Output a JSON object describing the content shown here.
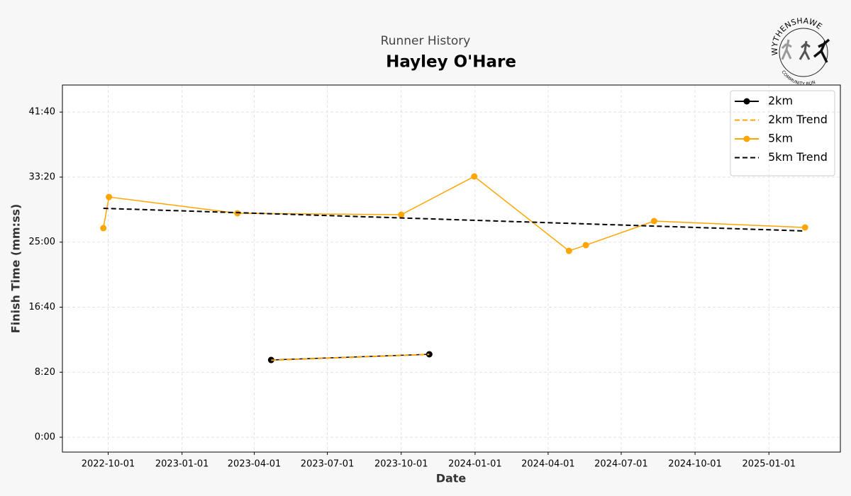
{
  "chart_data": {
    "type": "line",
    "subtitle": "Runner History",
    "title": "Hayley O'Hare",
    "xlabel": "Date",
    "ylabel": "Finish Time (mm:ss)",
    "logo": {
      "top": "WYTHENSHAWE",
      "bottom": "COMMUNITY RUN"
    },
    "xlim": [
      "2022-08-05",
      "2025-03-31"
    ],
    "xticks": [
      "2022-10-01",
      "2023-01-01",
      "2023-04-01",
      "2023-07-01",
      "2023-10-01",
      "2024-01-01",
      "2024-04-01",
      "2024-07-01",
      "2024-10-01",
      "2025-01-01"
    ],
    "ylim": [
      -114,
      2708
    ],
    "yticks": [
      {
        "value": 0,
        "label": "0:00"
      },
      {
        "value": 500,
        "label": "8:20"
      },
      {
        "value": 1000,
        "label": "16:40"
      },
      {
        "value": 1500,
        "label": "25:00"
      },
      {
        "value": 2000,
        "label": "33:20"
      },
      {
        "value": 2500,
        "label": "41:40"
      }
    ],
    "grid": true,
    "legend": "upper right",
    "series": [
      {
        "name": "2km",
        "color": "#000000",
        "style": "solid",
        "marker": true,
        "x": [
          "2023-04-22",
          "2023-11-05"
        ],
        "values": [
          594,
          638
        ]
      },
      {
        "name": "2km Trend",
        "color": "#ffa500",
        "style": "dashed",
        "marker": false,
        "x": [
          "2023-04-22",
          "2023-11-05"
        ],
        "values": [
          592,
          637
        ]
      },
      {
        "name": "5km",
        "color": "#ffa500",
        "style": "solid",
        "marker": true,
        "x": [
          "2022-09-25",
          "2022-10-02",
          "2023-03-11",
          "2023-10-01",
          "2023-12-31",
          "2024-04-27",
          "2024-05-18",
          "2024-08-11",
          "2025-02-15"
        ],
        "values": [
          1608,
          1847,
          1722,
          1711,
          2005,
          1433,
          1477,
          1662,
          1613
        ]
      },
      {
        "name": "5km Trend",
        "color": "#000000",
        "style": "dashed",
        "marker": false,
        "x": [
          "2022-09-25",
          "2025-02-15"
        ],
        "values": [
          1760,
          1586
        ]
      }
    ]
  }
}
